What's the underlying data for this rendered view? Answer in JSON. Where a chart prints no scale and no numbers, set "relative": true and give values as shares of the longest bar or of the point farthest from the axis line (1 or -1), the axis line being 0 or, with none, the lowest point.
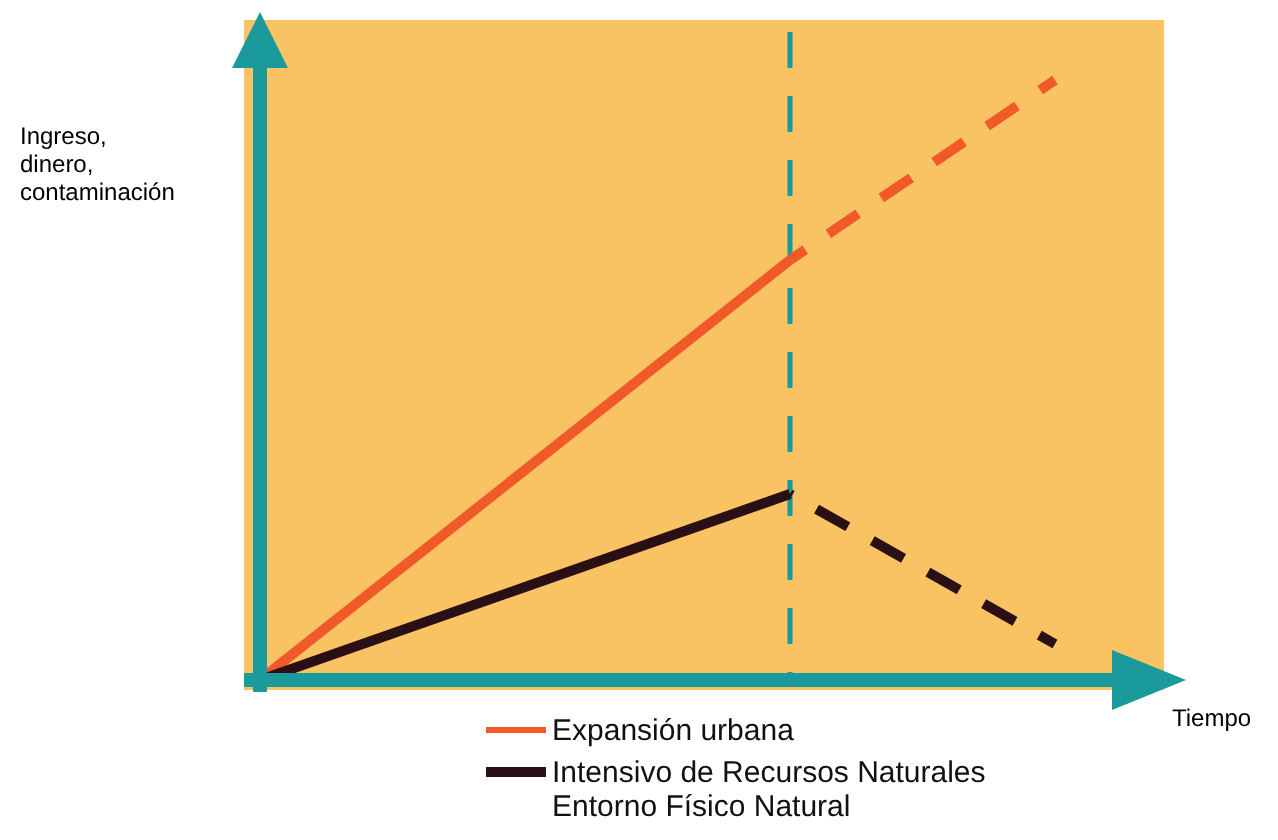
{
  "chart_data": {
    "type": "line",
    "relative": true,
    "categories": [
      null,
      null,
      null,
      null
    ],
    "xlabel": "Tiempo",
    "ylabel": "Ingreso,\ndinero,\ncontaminación",
    "series": [
      {
        "name": "Expansión urbana",
        "color": "#f05a28",
        "values": [
          0,
          0.35,
          0.7,
          null
        ],
        "line_style": "solid"
      },
      {
        "color": "#f05a28",
        "values": [
          null,
          null,
          0.7,
          1
        ],
        "line_style": "dashed"
      },
      {
        "name": "Intensivo de Recursos Naturales\nEntorno Físico Natural",
        "color": "#2a0f14",
        "values": [
          0,
          0.155,
          0.31,
          null
        ],
        "line_style": "solid"
      },
      {
        "color": "#2a0f14",
        "values": [
          null,
          null,
          0.31,
          0.06
        ],
        "line_style": "dashed"
      }
    ],
    "legend": "bottom",
    "marker": "none"
  }
}
